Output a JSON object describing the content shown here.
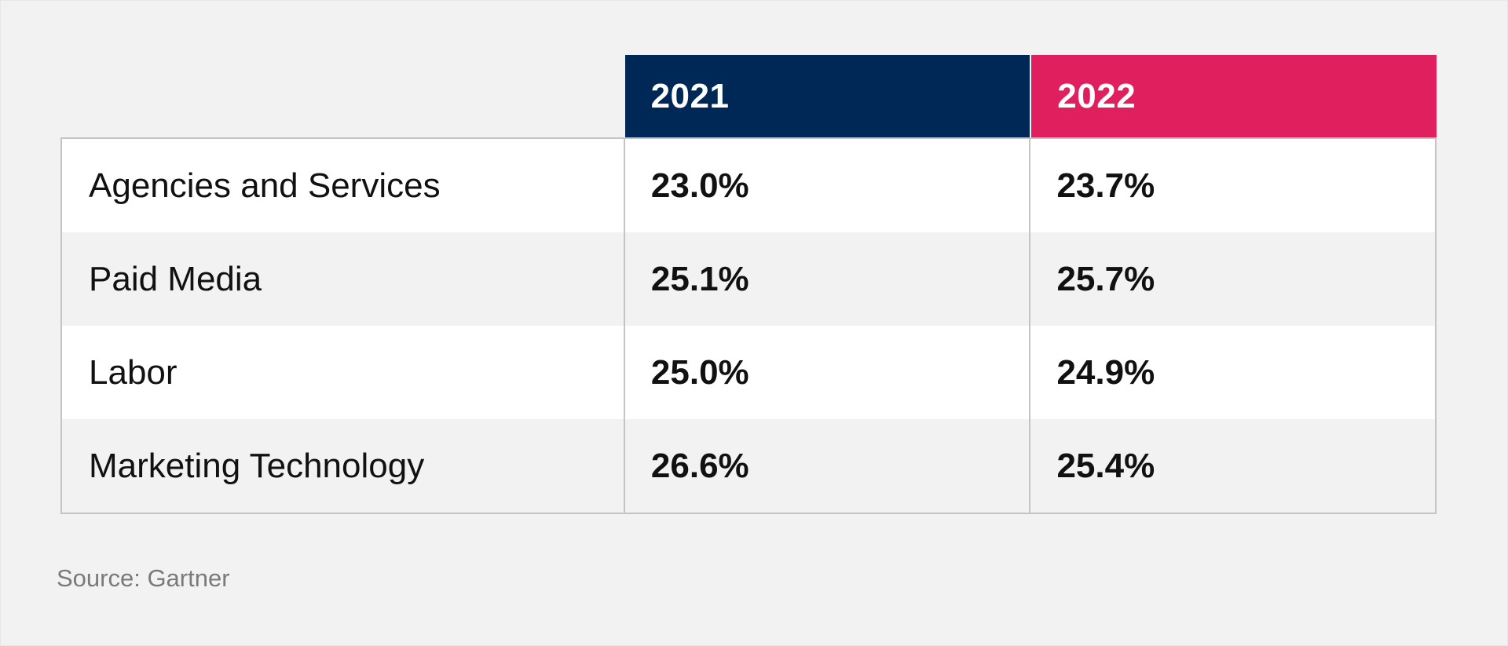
{
  "chart_data": {
    "type": "table",
    "columns": [
      "2021",
      "2022"
    ],
    "column_colors": [
      "#002856",
      "#e01f5e"
    ],
    "rows": [
      {
        "label": "Agencies and Services",
        "values": [
          "23.0%",
          "23.7%"
        ]
      },
      {
        "label": "Paid Media",
        "values": [
          "25.1%",
          "25.7%"
        ]
      },
      {
        "label": "Labor",
        "values": [
          "25.0%",
          "24.9%"
        ]
      },
      {
        "label": "Marketing Technology",
        "values": [
          "26.6%",
          "25.4%"
        ]
      }
    ],
    "source": "Source: Gartner"
  }
}
